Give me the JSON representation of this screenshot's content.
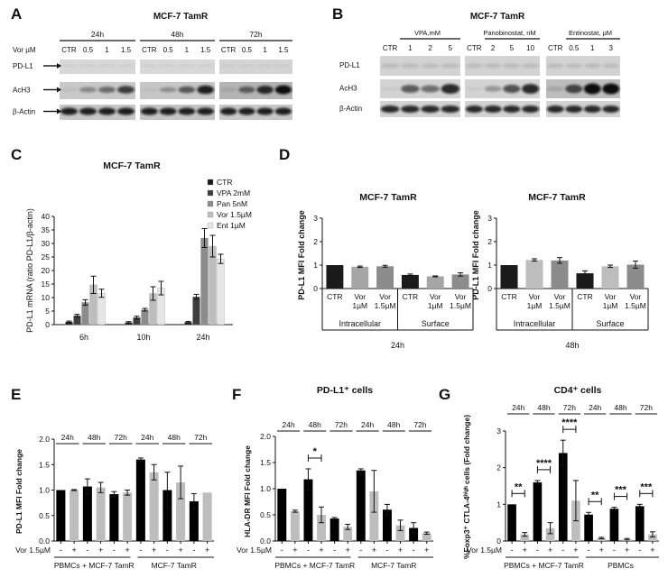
{
  "panels": {
    "A": {
      "letter": "A",
      "title": "MCF-7 TamR",
      "vor_label": "Vor µM",
      "groups": [
        {
          "time": "24h",
          "lanes": [
            "CTR",
            "0.5",
            "1",
            "1.5"
          ]
        },
        {
          "time": "48h",
          "lanes": [
            "CTR",
            "0.5",
            "1",
            "1.5"
          ]
        },
        {
          "time": "72h",
          "lanes": [
            "CTR",
            "0.5",
            "1",
            "1.5"
          ]
        }
      ],
      "rows": [
        "PD-L1",
        "AcH3",
        "β-Actin"
      ]
    },
    "B": {
      "letter": "B",
      "title": "MCF-7 TamR",
      "groups": [
        {
          "title": "VPA,mM",
          "lanes": [
            "CTR",
            "1",
            "2",
            "5"
          ]
        },
        {
          "title": "Panobinostat, nM",
          "lanes": [
            "CTR",
            "2",
            "5",
            "10"
          ]
        },
        {
          "title": "Entinostat, µM",
          "lanes": [
            "CTR",
            "0.5",
            "1",
            "3"
          ]
        }
      ],
      "rows": [
        "PD-L1",
        "AcH3",
        "β-Actin"
      ]
    },
    "C": {
      "letter": "C"
    },
    "D": {
      "letter": "D"
    },
    "E": {
      "letter": "E"
    },
    "F": {
      "letter": "F"
    },
    "G": {
      "letter": "G"
    }
  },
  "chart_data": [
    {
      "id": "C",
      "type": "bar",
      "title": "MCF-7 TamR",
      "ylabel": "PD-L1 mRNA (ratio PD-L1/β-actin)",
      "xlabel": "",
      "ylim": [
        0,
        40
      ],
      "yticks": [
        "0",
        "5",
        "10",
        "15",
        "20",
        "25",
        "30",
        "35",
        "40"
      ],
      "categories": [
        "6h",
        "10h",
        "24h"
      ],
      "legend_position": "top-right",
      "series": [
        {
          "name": "CTR",
          "color": "#1a1a1a",
          "values": [
            1,
            0.8,
            0.9
          ],
          "errors": [
            0.3,
            0.3,
            0.3
          ]
        },
        {
          "name": "VPA 2mM",
          "color": "#3d3d3d",
          "values": [
            3.3,
            2.6,
            10.3
          ],
          "errors": [
            0.5,
            0.5,
            0.9
          ]
        },
        {
          "name": "Pan 5nM",
          "color": "#8c8c8c",
          "values": [
            8.2,
            5.5,
            32
          ],
          "errors": [
            1.0,
            0.5,
            3.5
          ]
        },
        {
          "name": "Vor 1.5µM",
          "color": "#bdbdbd",
          "values": [
            14.7,
            11.5,
            29
          ],
          "errors": [
            3.2,
            2.5,
            4.0
          ]
        },
        {
          "name": "Ent 1µM",
          "color": "#e6e6e6",
          "values": [
            11.6,
            13.5,
            24.3
          ],
          "errors": [
            1.5,
            2.5,
            1.7
          ]
        }
      ]
    },
    {
      "id": "D1",
      "type": "bar",
      "title": "MCF-7 TamR",
      "ylabel": "PD-L1 MFI Fold change",
      "ylim": [
        0,
        3
      ],
      "yticks": [
        "0",
        "1",
        "2",
        "3"
      ],
      "categories": [
        "CTR",
        "Vor 1µM",
        "Vor 1.5µM",
        "CTR",
        "Vor 1µM",
        "Vor 1.5µM"
      ],
      "group_labels": [
        "Intracellular",
        "Surface"
      ],
      "time_label": "24h",
      "values": [
        1.0,
        0.93,
        0.95,
        0.58,
        0.52,
        0.6
      ],
      "errors": [
        0,
        0.03,
        0.04,
        0.04,
        0.02,
        0.07
      ],
      "colors": [
        "#1a1a1a",
        "#a6a6a6",
        "#8c8c8c",
        "#1a1a1a",
        "#a6a6a6",
        "#8c8c8c"
      ]
    },
    {
      "id": "D2",
      "type": "bar",
      "title": "MCF-7 TamR",
      "ylabel": "PD-L1 MFI Fold change",
      "ylim": [
        0,
        3
      ],
      "yticks": [
        "0",
        "1",
        "2",
        "3"
      ],
      "categories": [
        "CTR",
        "Vor 1µM",
        "Vor 1.5µM",
        "CTR",
        "Vor 1µM",
        "Vor 1.5µM"
      ],
      "group_labels": [
        "Intracellular",
        "Surface"
      ],
      "time_label": "48h",
      "values": [
        1.0,
        1.22,
        1.2,
        0.65,
        0.95,
        1.02
      ],
      "errors": [
        0,
        0.05,
        0.12,
        0.1,
        0.05,
        0.15
      ],
      "colors": [
        "#1a1a1a",
        "#bdbdbd",
        "#8c8c8c",
        "#1a1a1a",
        "#bdbdbd",
        "#8c8c8c"
      ]
    },
    {
      "id": "E",
      "type": "bar",
      "title": "",
      "ylabel": "PD-L1 MFI Fold change",
      "ylim": [
        0,
        2.0
      ],
      "yticks": [
        "0.0",
        "0.5",
        "1.0",
        "1.5",
        "2.0"
      ],
      "time_labels": [
        "24h",
        "48h",
        "72h",
        "24h",
        "48h",
        "72h"
      ],
      "tick_marks": [
        "-",
        "+",
        "-",
        "+",
        "-",
        "+",
        "-",
        "+",
        "-",
        "+",
        "-",
        "+"
      ],
      "vor_label": "Vor 1.5µM",
      "group_labels": [
        "PBMCs + MCF-7 TamR",
        "MCF-7 TamR"
      ],
      "values": [
        1.0,
        1.0,
        1.07,
        1.05,
        0.92,
        0.95,
        1.6,
        1.35,
        1.0,
        1.15,
        0.78,
        0.95
      ],
      "errors": [
        0,
        0.01,
        0.15,
        0.1,
        0.05,
        0.05,
        0.03,
        0.15,
        0.35,
        0.32,
        0.15,
        0
      ],
      "colors": [
        "#000",
        "#bdbdbd",
        "#000",
        "#bdbdbd",
        "#000",
        "#bdbdbd",
        "#000",
        "#bdbdbd",
        "#000",
        "#bdbdbd",
        "#000",
        "#bdbdbd"
      ]
    },
    {
      "id": "F",
      "type": "bar",
      "title": "PD-L1⁺ cells",
      "ylabel": "HLA-DR MFI Fold change",
      "ylim": [
        0,
        2.0
      ],
      "yticks": [
        "0.0",
        "0.5",
        "1.0",
        "1.5",
        "2.0"
      ],
      "time_labels": [
        "24h",
        "48h",
        "72h",
        "24h",
        "48h",
        "72h"
      ],
      "tick_marks": [
        "-",
        "+",
        "-",
        "+",
        "-",
        "+",
        "-",
        "+",
        "-",
        "+",
        "-",
        "+"
      ],
      "vor_label": "Vor 1.5µM",
      "group_labels": [
        "PBMCs + MCF-7 TamR",
        "MCF-7 TamR"
      ],
      "significance": [
        {
          "pair": [
            2,
            3
          ],
          "label": "*"
        }
      ],
      "values": [
        1.0,
        0.57,
        1.18,
        0.5,
        0.43,
        0.27,
        1.35,
        0.95,
        0.6,
        0.3,
        0.25,
        0.15
      ],
      "errors": [
        0,
        0.02,
        0.2,
        0.15,
        0.02,
        0.05,
        0.03,
        0.4,
        0.1,
        0.1,
        0.1,
        0.02
      ],
      "colors": [
        "#000",
        "#bdbdbd",
        "#000",
        "#bdbdbd",
        "#000",
        "#bdbdbd",
        "#000",
        "#bdbdbd",
        "#000",
        "#bdbdbd",
        "#000",
        "#bdbdbd"
      ]
    },
    {
      "id": "G",
      "type": "bar",
      "title": "CD4⁺ cells",
      "ylabel": "%Foxp3⁺ CTLA-4ʰⁱᵍʰ cells (Fold change)",
      "ylim": [
        0,
        3
      ],
      "yticks": [
        "0",
        "1",
        "2",
        "3"
      ],
      "time_labels": [
        "24h",
        "48h",
        "72h",
        "24h",
        "48h",
        "72h"
      ],
      "tick_marks": [
        "-",
        "+",
        "-",
        "+",
        "-",
        "+",
        "-",
        "+",
        "-",
        "+",
        "-",
        "+"
      ],
      "vor_label": "Vor 1.5µM",
      "group_labels": [
        "PBMCs + MCF-7 TamR",
        "PBMCs"
      ],
      "significance": [
        {
          "pair": [
            0,
            1
          ],
          "label": "**"
        },
        {
          "pair": [
            2,
            3
          ],
          "label": "****"
        },
        {
          "pair": [
            4,
            5
          ],
          "label": "****"
        },
        {
          "pair": [
            6,
            7
          ],
          "label": "**"
        },
        {
          "pair": [
            8,
            9
          ],
          "label": "***"
        },
        {
          "pair": [
            10,
            11
          ],
          "label": "***"
        }
      ],
      "values": [
        1.0,
        0.18,
        1.6,
        0.35,
        2.4,
        1.1,
        0.72,
        0.08,
        0.88,
        0.05,
        0.95,
        0.18
      ],
      "errors": [
        0,
        0.05,
        0.05,
        0.15,
        0.35,
        0.55,
        0.06,
        0.02,
        0.04,
        0.02,
        0.05,
        0.07
      ],
      "colors": [
        "#000",
        "#bdbdbd",
        "#000",
        "#bdbdbd",
        "#000",
        "#bdbdbd",
        "#000",
        "#bdbdbd",
        "#000",
        "#bdbdbd",
        "#000",
        "#bdbdbd"
      ]
    }
  ]
}
